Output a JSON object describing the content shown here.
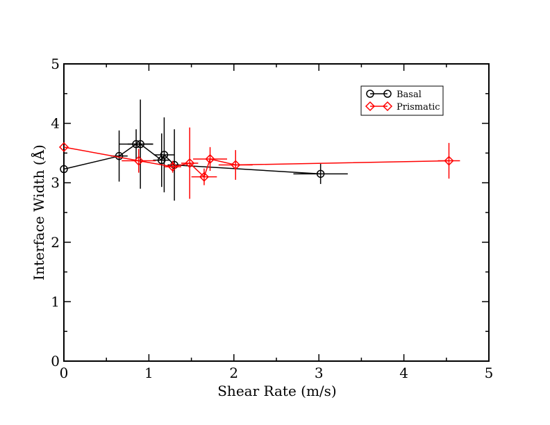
{
  "chart_data": {
    "type": "scatter",
    "xlabel": "Shear Rate (m/s)",
    "ylabel": "Interface Width (Å)",
    "xlim": [
      0,
      5
    ],
    "ylim": [
      0,
      5
    ],
    "x_ticks": [
      "0",
      "1",
      "2",
      "3",
      "4",
      "5"
    ],
    "y_ticks": [
      "0",
      "1",
      "2",
      "3",
      "4",
      "5"
    ],
    "grid": false,
    "legend_position": "top-right",
    "series": [
      {
        "name": "Basal",
        "color": "#000000",
        "marker": "circle",
        "points": [
          {
            "x": 0.0,
            "y": 3.23,
            "xerr": 0.0,
            "yerr": 0.0
          },
          {
            "x": 0.65,
            "y": 3.45,
            "xerr": 0.1,
            "yerr": 0.43
          },
          {
            "x": 0.85,
            "y": 3.65,
            "xerr": 0.2,
            "yerr": 0.25
          },
          {
            "x": 0.9,
            "y": 3.65,
            "xerr": 0.15,
            "yerr": 0.75
          },
          {
            "x": 1.15,
            "y": 3.38,
            "xerr": 0.1,
            "yerr": 0.45
          },
          {
            "x": 1.18,
            "y": 3.47,
            "xerr": 0.12,
            "yerr": 0.63
          },
          {
            "x": 1.3,
            "y": 3.3,
            "xerr": 0.08,
            "yerr": 0.6
          },
          {
            "x": 3.02,
            "y": 3.15,
            "xerr": 0.32,
            "yerr": 0.17
          }
        ]
      },
      {
        "name": "Prismatic",
        "color": "#ff0000",
        "marker": "diamond",
        "points": [
          {
            "x": 0.0,
            "y": 3.6,
            "xerr": 0.0,
            "yerr": 0.0
          },
          {
            "x": 0.88,
            "y": 3.37,
            "xerr": 0.2,
            "yerr": 0.2
          },
          {
            "x": 1.28,
            "y": 3.27,
            "xerr": 0.1,
            "yerr": 0.1
          },
          {
            "x": 1.48,
            "y": 3.33,
            "xerr": 0.1,
            "yerr": 0.6
          },
          {
            "x": 1.65,
            "y": 3.1,
            "xerr": 0.15,
            "yerr": 0.14
          },
          {
            "x": 1.72,
            "y": 3.4,
            "xerr": 0.2,
            "yerr": 0.2
          },
          {
            "x": 2.02,
            "y": 3.3,
            "xerr": 0.2,
            "yerr": 0.25
          },
          {
            "x": 4.53,
            "y": 3.37,
            "xerr": 0.13,
            "yerr": 0.3
          }
        ]
      }
    ]
  }
}
